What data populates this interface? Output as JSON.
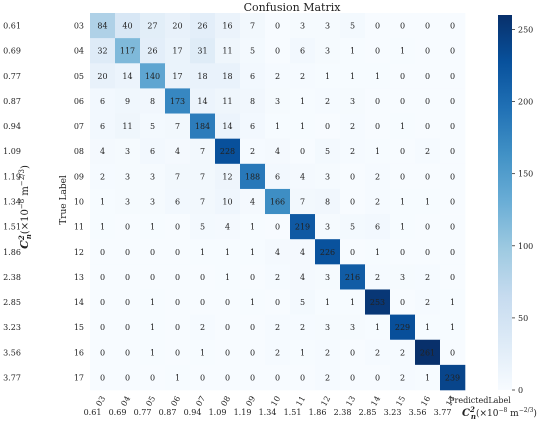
{
  "chart_data": {
    "type": "heatmap",
    "title": "Confusion Matrix",
    "xlabel": "PredictedLabel",
    "ylabel": "True Label",
    "classes": [
      "03",
      "04",
      "05",
      "06",
      "07",
      "08",
      "09",
      "10",
      "11",
      "12",
      "13",
      "14",
      "15",
      "16",
      "17"
    ],
    "cn2_values": [
      "0.61",
      "0.69",
      "0.77",
      "0.87",
      "0.94",
      "1.09",
      "1.19",
      "1.34",
      "1.51",
      "1.86",
      "2.38",
      "2.85",
      "3.23",
      "3.56",
      "3.77"
    ],
    "cn2_axis_label": "C_n^2 (×10^-8 m^-2/3)",
    "matrix": [
      [
        84,
        40,
        27,
        20,
        26,
        16,
        7,
        0,
        3,
        3,
        5,
        0,
        0,
        0,
        0
      ],
      [
        32,
        117,
        26,
        17,
        31,
        11,
        5,
        0,
        6,
        3,
        1,
        0,
        1,
        0,
        0
      ],
      [
        20,
        14,
        140,
        17,
        18,
        18,
        6,
        2,
        2,
        1,
        1,
        1,
        0,
        0,
        0
      ],
      [
        6,
        9,
        8,
        173,
        14,
        11,
        8,
        3,
        1,
        2,
        3,
        0,
        0,
        0,
        0
      ],
      [
        6,
        11,
        5,
        7,
        184,
        14,
        6,
        1,
        1,
        0,
        2,
        0,
        1,
        0,
        0
      ],
      [
        4,
        3,
        6,
        4,
        7,
        228,
        2,
        4,
        0,
        5,
        2,
        1,
        0,
        2,
        0
      ],
      [
        2,
        3,
        3,
        7,
        7,
        12,
        188,
        6,
        4,
        3,
        0,
        2,
        0,
        0,
        0
      ],
      [
        1,
        3,
        3,
        6,
        7,
        10,
        4,
        166,
        7,
        8,
        0,
        2,
        1,
        1,
        0
      ],
      [
        1,
        0,
        1,
        0,
        5,
        4,
        1,
        0,
        219,
        3,
        5,
        6,
        1,
        0,
        0
      ],
      [
        0,
        0,
        0,
        0,
        1,
        1,
        1,
        4,
        4,
        226,
        0,
        1,
        0,
        0,
        0
      ],
      [
        0,
        0,
        0,
        0,
        0,
        1,
        0,
        2,
        4,
        3,
        216,
        2,
        3,
        2,
        0
      ],
      [
        0,
        0,
        1,
        0,
        0,
        0,
        1,
        0,
        5,
        1,
        1,
        253,
        0,
        2,
        1
      ],
      [
        0,
        0,
        1,
        0,
        2,
        0,
        0,
        2,
        2,
        3,
        3,
        1,
        229,
        1,
        1
      ],
      [
        0,
        0,
        1,
        0,
        1,
        0,
        0,
        2,
        1,
        2,
        0,
        2,
        2,
        261,
        0
      ],
      [
        0,
        0,
        0,
        1,
        0,
        0,
        0,
        0,
        0,
        2,
        0,
        0,
        2,
        1,
        239
      ]
    ],
    "colorbar": {
      "min": 0,
      "max": 260,
      "ticks": [
        0,
        50,
        100,
        150,
        200,
        250
      ]
    },
    "colormap": [
      "#f7fbff",
      "#deebf7",
      "#c6dbef",
      "#9ecae1",
      "#6baed6",
      "#4292c6",
      "#2171b5",
      "#08519c",
      "#08306b"
    ]
  }
}
